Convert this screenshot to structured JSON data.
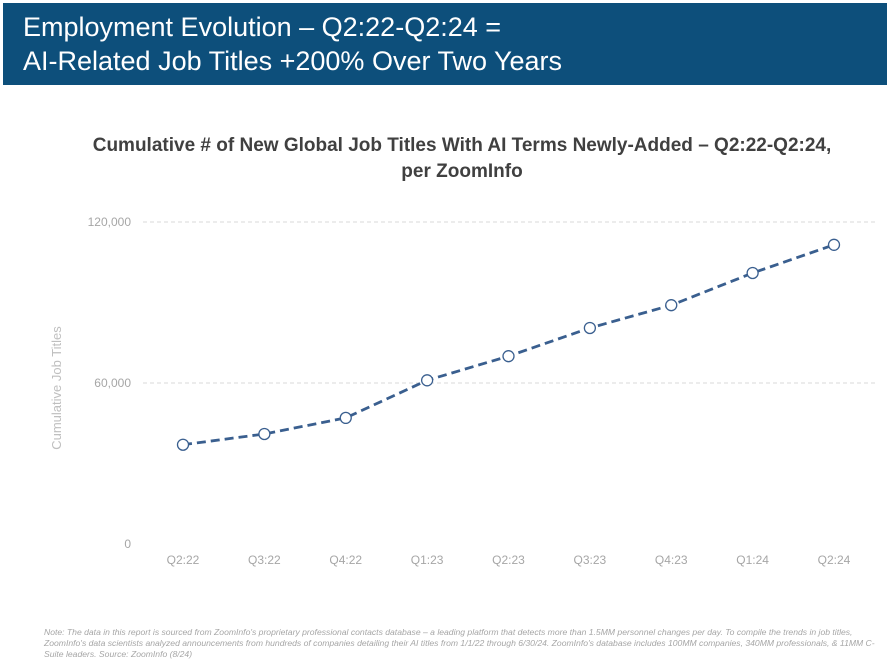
{
  "header": {
    "title_line1": "Employment Evolution – Q2:22-Q2:24 =",
    "title_line2": "AI-Related Job Titles +200% Over Two Years"
  },
  "chart_data": {
    "type": "line",
    "title_line1": "Cumulative # of New Global Job Titles With AI Terms Newly-Added – Q2:22-Q2:24,",
    "title_line2": "per ZoomInfo",
    "ylabel": "Cumulative Job Titles",
    "xlabel": "",
    "categories": [
      "Q2:22",
      "Q3:22",
      "Q4:22",
      "Q1:23",
      "Q2:23",
      "Q3:23",
      "Q4:23",
      "Q1:24",
      "Q2:24"
    ],
    "series": [
      {
        "values": [
          37000,
          41000,
          47000,
          61000,
          70000,
          80500,
          89000,
          101000,
          111500
        ]
      }
    ],
    "ylim": [
      0,
      120000
    ],
    "yticks": [
      0,
      60000,
      120000
    ],
    "ytick_labels": [
      "0",
      "60,000",
      "120,000"
    ],
    "grid": "horizontal dashed",
    "line_style": "dashed",
    "colors": {
      "line": "#3a5f8f",
      "marker_fill": "#ffffff",
      "grid": "#d9d9d9",
      "axis_text": "#a6a6a6"
    }
  },
  "footnote": "Note: The data in this report is sourced from ZoomInfo's proprietary professional contacts database – a leading platform that detects more than 1.5MM personnel changes per day. To compile the trends in job titles, ZoomInfo's data scientists analyzed announcements from hundreds of companies detailing their AI titles from 1/1/22 through 6/30/24. ZoomInfo's database includes 100MM companies, 340MM professionals, & 11MM C-Suite leaders. Source: ZoomInfo (8/24)"
}
